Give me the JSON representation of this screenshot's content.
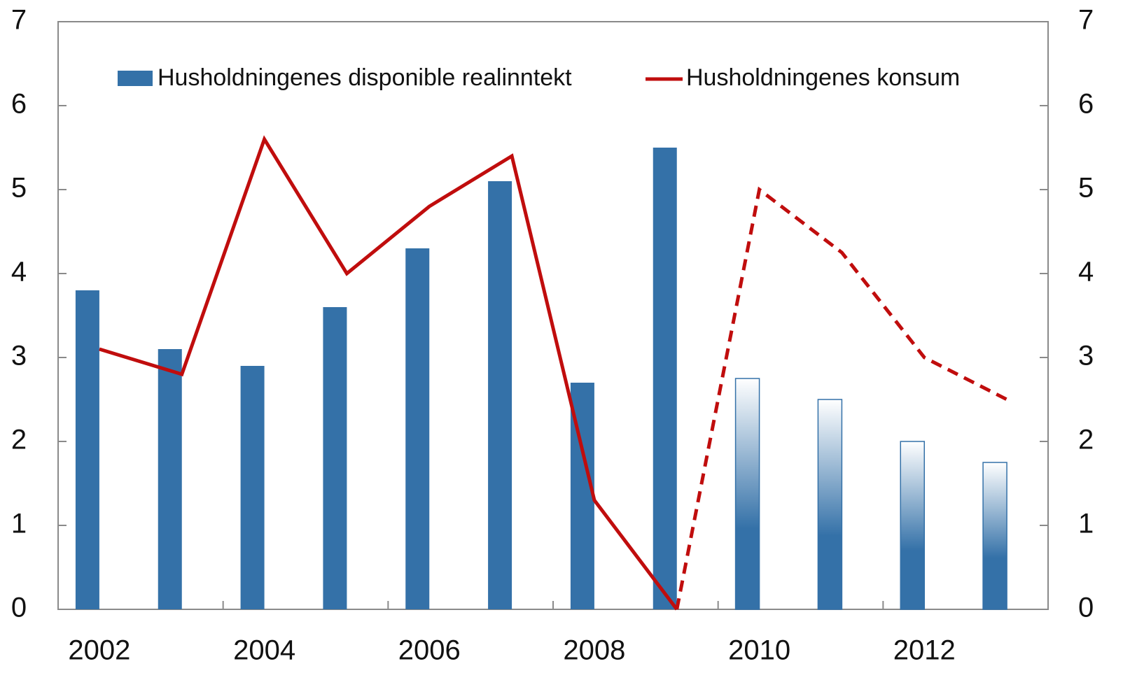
{
  "chart_data": {
    "type": "bar-line",
    "categories": [
      "2002",
      null,
      "2004",
      null,
      "2006",
      null,
      "2008",
      null,
      "2010",
      null,
      "2012",
      null
    ],
    "series": [
      {
        "name": "Husholdningenes disponible realinntekt",
        "type": "bar",
        "color": "#3471a8",
        "values": [
          3.8,
          3.1,
          2.9,
          3.6,
          4.3,
          5.1,
          2.7,
          5.5,
          2.75,
          2.5,
          2.0,
          1.75
        ]
      },
      {
        "name": "Husholdningenes konsum",
        "type": "line",
        "color": "#c00d0d",
        "values": [
          3.1,
          2.8,
          5.6,
          4.0,
          4.8,
          5.4,
          1.3,
          0,
          5.0,
          4.25,
          3.0,
          2.5
        ]
      }
    ],
    "projection_start": 8,
    "ylim": [
      0,
      7
    ],
    "yticks": [
      0,
      1,
      2,
      3,
      4,
      5,
      6,
      7
    ],
    "legend": "top"
  }
}
